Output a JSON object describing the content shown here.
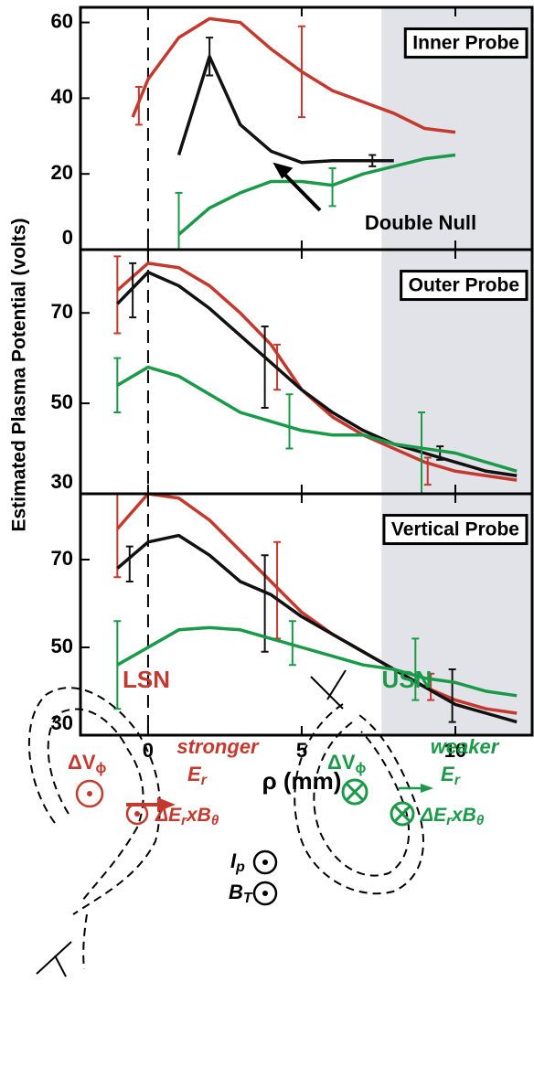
{
  "chart_data": [
    {
      "type": "line",
      "title": "Inner Probe",
      "annotation": "Double Null",
      "xlim": [
        -2.2,
        12.5
      ],
      "xticks": [
        0,
        5,
        10
      ],
      "ylim": [
        0,
        64
      ],
      "yticks": [
        0,
        20,
        40,
        60
      ],
      "vline": 0,
      "shade_from": 7.6,
      "series": [
        {
          "color": "#c4392d",
          "x": [
            -0.5,
            0,
            1,
            2,
            3,
            4,
            5,
            6,
            7,
            8,
            9,
            10
          ],
          "values": [
            35,
            45,
            56,
            61,
            60,
            53,
            47,
            42,
            39,
            36,
            32,
            31
          ],
          "error_bars": {
            "x": [
              -0.3,
              5
            ],
            "values": [
              38,
              47
            ],
            "errors": [
              5,
              12
            ]
          }
        },
        {
          "color": "#111111",
          "x": [
            1,
            2,
            3,
            4,
            5,
            6,
            7,
            8
          ],
          "values": [
            25,
            51,
            33,
            26,
            23,
            23.5,
            23.5,
            23.5
          ],
          "error_bars": {
            "x": [
              2,
              7.3
            ],
            "values": [
              51,
              23.5
            ],
            "errors": [
              5,
              1.5
            ]
          }
        },
        {
          "color": "#1a9a48",
          "x": [
            1,
            2,
            3,
            4,
            5,
            6,
            7,
            8,
            9,
            10
          ],
          "values": [
            4,
            11,
            15,
            18,
            18,
            17,
            20,
            22,
            24,
            25
          ],
          "error_bars": {
            "x": [
              1,
              6
            ],
            "values": [
              4,
              16.5
            ],
            "errors": [
              11,
              5
            ]
          }
        }
      ]
    },
    {
      "type": "line",
      "title": "Outer Probe",
      "ylabel": "Estimated Plasma Potential (volts)",
      "xlim": [
        -2.2,
        12.5
      ],
      "xticks": [
        0,
        5,
        10
      ],
      "ylim": [
        30,
        84
      ],
      "yticks": [
        30,
        50,
        70
      ],
      "vline": 0,
      "shade_from": 7.6,
      "series": [
        {
          "color": "#c4392d",
          "x": [
            -1,
            0,
            1,
            2,
            3,
            4,
            5,
            6,
            7,
            8,
            9,
            10,
            11,
            12
          ],
          "values": [
            75,
            81,
            80,
            76,
            70,
            63,
            53,
            47,
            43,
            40,
            37,
            35,
            34,
            33
          ],
          "error_bars": {
            "x": [
              -1,
              4.2,
              9.1
            ],
            "values": [
              74,
              58,
              35
            ],
            "errors": [
              8.5,
              5,
              3
            ]
          }
        },
        {
          "color": "#111111",
          "x": [
            -1,
            0,
            1,
            2,
            3,
            4,
            5,
            6,
            7,
            8,
            9,
            10,
            11,
            12
          ],
          "values": [
            72,
            79,
            76,
            71,
            65,
            59,
            53,
            48,
            44,
            41,
            39,
            37,
            35,
            34
          ],
          "error_bars": {
            "x": [
              -0.5,
              3.8,
              9.5
            ],
            "values": [
              75,
              58,
              39
            ],
            "errors": [
              6,
              9,
              1.5
            ]
          }
        },
        {
          "color": "#1a9a48",
          "x": [
            -1,
            0,
            1,
            2,
            3,
            4,
            5,
            6,
            7,
            8,
            9,
            10,
            11,
            12
          ],
          "values": [
            54,
            58,
            56,
            52,
            48,
            46,
            44,
            43,
            43,
            41,
            40,
            39,
            37,
            35
          ],
          "error_bars": {
            "x": [
              -1,
              4.6,
              8.9
            ],
            "values": [
              54,
              46,
              39
            ],
            "errors": [
              6,
              6,
              9
            ]
          }
        }
      ]
    },
    {
      "type": "line",
      "title": "Vertical Probe",
      "xlabel": "ρ (mm)",
      "xlim": [
        -2.2,
        12.5
      ],
      "xticks": [
        0,
        5,
        10
      ],
      "ylim": [
        30,
        85
      ],
      "yticks": [
        30,
        50,
        70
      ],
      "vline": 0,
      "shade_from": 7.6,
      "series": [
        {
          "color": "#c4392d",
          "x": [
            -1,
            0,
            1,
            2,
            3,
            4,
            5,
            6,
            7,
            8,
            9,
            10,
            11,
            12
          ],
          "values": [
            77,
            85,
            84,
            79,
            72,
            65,
            58,
            53,
            49,
            45,
            41,
            38,
            36,
            35
          ],
          "error_bars": {
            "x": [
              -1,
              4.2,
              9.2
            ],
            "values": [
              77,
              63,
              41
            ],
            "errors": [
              11,
              11,
              3
            ]
          }
        },
        {
          "color": "#111111",
          "x": [
            -1,
            0,
            1,
            2,
            3,
            4,
            5,
            6,
            7,
            8,
            9,
            10,
            11,
            12
          ],
          "values": [
            68,
            74,
            75.5,
            71,
            65,
            62,
            57,
            53,
            49,
            45,
            41,
            37,
            35,
            33
          ],
          "error_bars": {
            "x": [
              -0.6,
              3.8,
              9.9
            ],
            "values": [
              69,
              60,
              39
            ],
            "errors": [
              4,
              11,
              6
            ]
          }
        },
        {
          "color": "#1a9a48",
          "x": [
            -1,
            0,
            1,
            2,
            3,
            4,
            5,
            6,
            7,
            8,
            9,
            10,
            11,
            12
          ],
          "values": [
            46,
            50,
            54,
            54.5,
            54,
            52,
            50,
            48,
            46,
            45,
            43,
            42,
            40,
            39
          ],
          "error_bars": {
            "x": [
              -1,
              4.7,
              8.7
            ],
            "values": [
              46,
              51,
              45
            ],
            "errors": [
              10,
              5,
              7
            ]
          }
        }
      ]
    }
  ],
  "diagram": {
    "lsn": {
      "label": "LSN",
      "dv": [
        "ΔV",
        "ϕ"
      ],
      "strength": "stronger",
      "er": [
        "E",
        "r"
      ],
      "drift": [
        "ΔE",
        "r",
        "xB",
        "θ"
      ]
    },
    "usn": {
      "label": "USN",
      "dv": [
        "ΔV",
        "ϕ"
      ],
      "strength": "weaker",
      "er": [
        "E",
        "r"
      ],
      "drift": [
        "ΔE",
        "r",
        "xB",
        "θ"
      ]
    },
    "ip": [
      "I",
      "p"
    ],
    "bt": [
      "B",
      "T"
    ]
  }
}
